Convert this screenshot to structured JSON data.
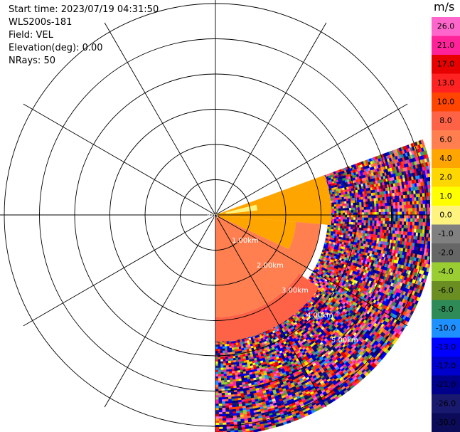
{
  "header": {
    "start_time_label": "Start time:",
    "start_time": "2023/07/19 04:31:50",
    "instrument": "WLS200s-181",
    "field_label": "Field:",
    "field": "VEL",
    "elevation_label": "Elevation(deg):",
    "elevation": "0.00",
    "nrays_label": "NRays:",
    "nrays": "50"
  },
  "chart_data": {
    "type": "heatmap",
    "projection": "polar-ppi",
    "field": "VEL",
    "units": "m/s",
    "azimuth_range_deg": [
      70,
      180
    ],
    "num_rays": 50,
    "range_rings_km": [
      1,
      2,
      3,
      4,
      5,
      6
    ],
    "range_ring_labels": [
      "km",
      "1.00km",
      "2.00km",
      "3.00km",
      "4.00km",
      "5.00km"
    ],
    "max_range_km": 6,
    "spoke_angles_deg": [
      0,
      30,
      60,
      90,
      120,
      150,
      180,
      210,
      240,
      270,
      300,
      330
    ],
    "grid": true,
    "colorbar": {
      "title": "m/s",
      "ticks": [
        "26.0",
        "21.0",
        "17.0",
        "13.0",
        "10.0",
        "8.0",
        "6.0",
        "4.0",
        "2.0",
        "1.0",
        "0.0",
        "-1.0",
        "-2.0",
        "-4.0",
        "-6.0",
        "-8.0",
        "-10.0",
        "-13.0",
        "-17.0",
        "-21.0",
        "-26.0",
        "-30.0"
      ],
      "colors": [
        "#ff66cc",
        "#ff2299",
        "#e60000",
        "#ff2222",
        "#ff4500",
        "#ff6347",
        "#ff7f50",
        "#ffa500",
        "#ffd700",
        "#ffff00",
        "#fff380",
        "#808080",
        "#666666",
        "#9acd32",
        "#6b8e23",
        "#2e8b57",
        "#1e90ff",
        "#0000ff",
        "#0000cd",
        "#00008b",
        "#191970",
        "#0b0b5a"
      ]
    },
    "sectors": [
      {
        "az": [
          70,
          95
        ],
        "r_km": [
          0,
          3.3
        ],
        "value": 3
      },
      {
        "az": [
          95,
          115
        ],
        "r_km": [
          0,
          2.3
        ],
        "value": 3
      },
      {
        "az": [
          115,
          180
        ],
        "r_km": [
          0,
          2.9
        ],
        "value": 6
      },
      {
        "az": [
          95,
          125
        ],
        "r_km": [
          2.3,
          3.0
        ],
        "value": 6
      },
      {
        "az": [
          125,
          180
        ],
        "r_km": [
          2.9,
          3.6
        ],
        "value": 7
      },
      {
        "az": [
          76,
          84
        ],
        "r_km": [
          0.3,
          1.2
        ],
        "value": 0
      }
    ],
    "mixed_region": {
      "az": [
        70,
        180
      ],
      "r_km": [
        3.2,
        6.2
      ],
      "value_range": [
        -30,
        26
      ]
    }
  }
}
